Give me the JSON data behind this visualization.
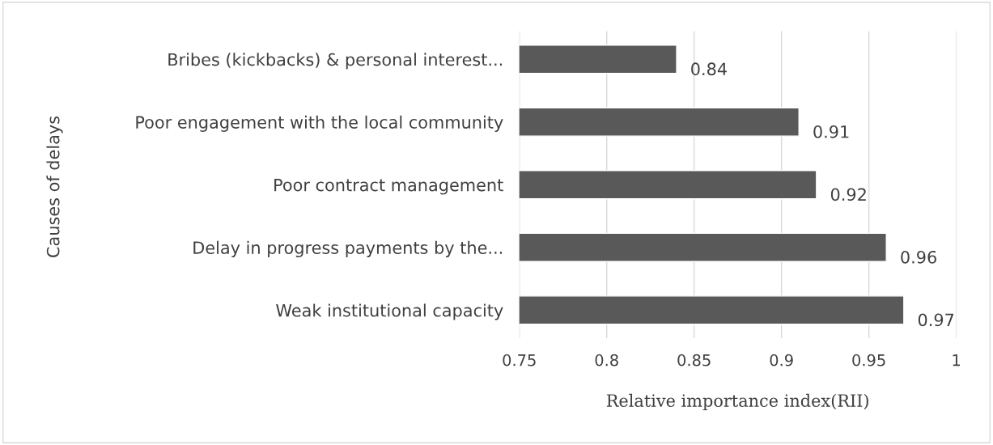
{
  "chart_data": {
    "type": "bar",
    "orientation": "horizontal",
    "categories": [
      "Bribes (kickbacks) & personal interest...",
      "Poor engagement with the local community",
      "Poor contract management",
      "Delay in progress payments by the...",
      "Weak institutional capacity"
    ],
    "values": [
      0.84,
      0.91,
      0.92,
      0.96,
      0.97
    ],
    "color": "#595959",
    "xlim": [
      0.75,
      1
    ],
    "xticks": [
      0.75,
      0.8,
      0.85,
      0.9,
      0.95,
      1
    ],
    "xlabel": "Relative importance index(RII)",
    "ylabel": "Causes of delays",
    "grid": "x",
    "data_labels": true
  }
}
